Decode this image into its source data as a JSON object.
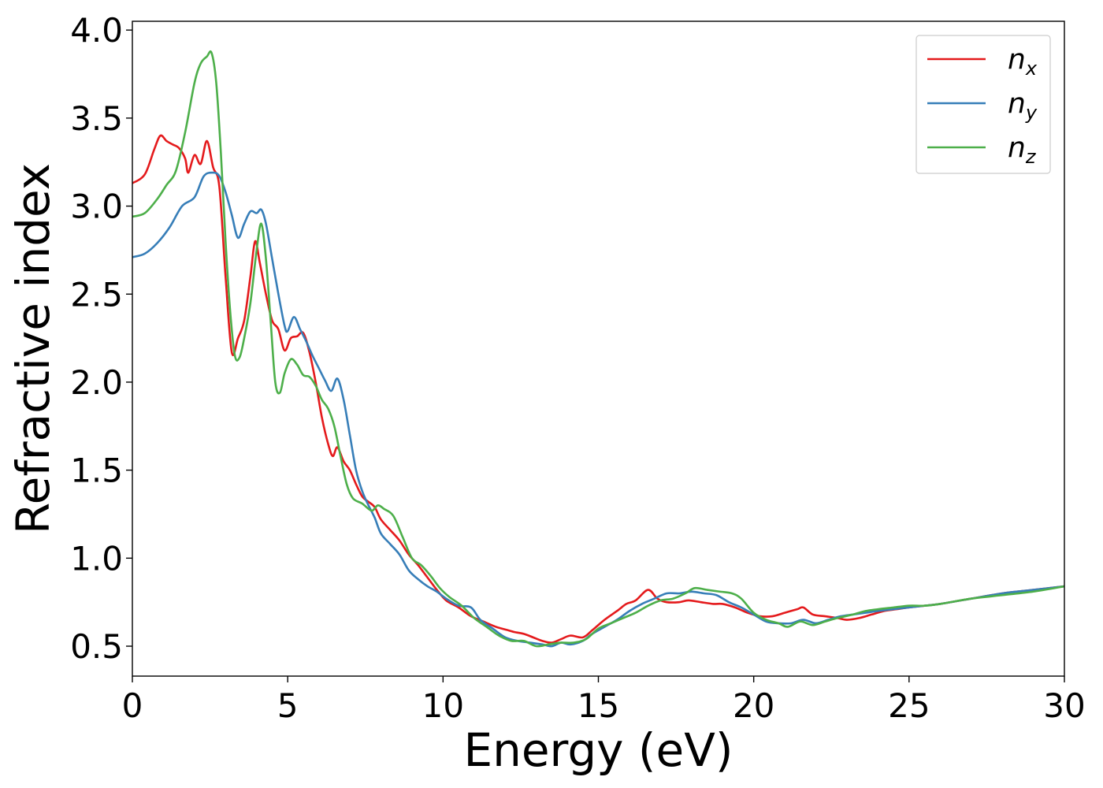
{
  "chart_data": {
    "type": "line",
    "title": "",
    "xlabel": "Energy (eV)",
    "ylabel": "Refractive index",
    "xlim": [
      0,
      30
    ],
    "ylim": [
      0.33,
      4.05
    ],
    "xticks": [
      0,
      5,
      10,
      15,
      20,
      25,
      30
    ],
    "xtick_labels": [
      "0",
      "5",
      "10",
      "15",
      "20",
      "25",
      "30"
    ],
    "yticks": [
      0.5,
      1.0,
      1.5,
      2.0,
      2.5,
      3.0,
      3.5,
      4.0
    ],
    "ytick_labels": [
      "0.5",
      "1.0",
      "1.5",
      "2.0",
      "2.5",
      "3.0",
      "3.5",
      "4.0"
    ],
    "grid": false,
    "legend_position": "top-right",
    "series": [
      {
        "name": "n_x",
        "label_base": "n",
        "label_sub": "x",
        "color": "#e41a1c",
        "points": [
          [
            0,
            3.13
          ],
          [
            0.4,
            3.18
          ],
          [
            0.7,
            3.32
          ],
          [
            0.9,
            3.4
          ],
          [
            1.1,
            3.37
          ],
          [
            1.3,
            3.35
          ],
          [
            1.5,
            3.33
          ],
          [
            1.7,
            3.27
          ],
          [
            1.8,
            3.19
          ],
          [
            2.0,
            3.29
          ],
          [
            2.2,
            3.24
          ],
          [
            2.4,
            3.37
          ],
          [
            2.6,
            3.22
          ],
          [
            2.8,
            3.11
          ],
          [
            3.0,
            2.6
          ],
          [
            3.2,
            2.17
          ],
          [
            3.4,
            2.25
          ],
          [
            3.6,
            2.35
          ],
          [
            3.8,
            2.6
          ],
          [
            3.95,
            2.8
          ],
          [
            4.1,
            2.68
          ],
          [
            4.3,
            2.5
          ],
          [
            4.5,
            2.35
          ],
          [
            4.7,
            2.3
          ],
          [
            4.9,
            2.18
          ],
          [
            5.1,
            2.25
          ],
          [
            5.3,
            2.26
          ],
          [
            5.5,
            2.28
          ],
          [
            5.7,
            2.17
          ],
          [
            5.9,
            2.0
          ],
          [
            6.1,
            1.8
          ],
          [
            6.3,
            1.65
          ],
          [
            6.45,
            1.58
          ],
          [
            6.6,
            1.63
          ],
          [
            6.8,
            1.55
          ],
          [
            7.0,
            1.5
          ],
          [
            7.2,
            1.42
          ],
          [
            7.4,
            1.35
          ],
          [
            7.6,
            1.32
          ],
          [
            7.8,
            1.29
          ],
          [
            8.0,
            1.22
          ],
          [
            8.3,
            1.16
          ],
          [
            8.6,
            1.1
          ],
          [
            8.9,
            1.02
          ],
          [
            9.2,
            0.96
          ],
          [
            9.5,
            0.89
          ],
          [
            9.8,
            0.82
          ],
          [
            10.1,
            0.76
          ],
          [
            10.5,
            0.72
          ],
          [
            10.9,
            0.67
          ],
          [
            11.3,
            0.64
          ],
          [
            11.7,
            0.61
          ],
          [
            12.1,
            0.59
          ],
          [
            12.3,
            0.58
          ],
          [
            12.6,
            0.57
          ],
          [
            12.9,
            0.55
          ],
          [
            13.2,
            0.53
          ],
          [
            13.5,
            0.52
          ],
          [
            13.8,
            0.54
          ],
          [
            14.1,
            0.56
          ],
          [
            14.5,
            0.55
          ],
          [
            14.8,
            0.59
          ],
          [
            15.2,
            0.65
          ],
          [
            15.6,
            0.7
          ],
          [
            15.9,
            0.74
          ],
          [
            16.2,
            0.76
          ],
          [
            16.6,
            0.82
          ],
          [
            16.9,
            0.77
          ],
          [
            17.2,
            0.75
          ],
          [
            17.6,
            0.75
          ],
          [
            17.9,
            0.76
          ],
          [
            18.3,
            0.75
          ],
          [
            18.7,
            0.74
          ],
          [
            19.0,
            0.74
          ],
          [
            19.4,
            0.72
          ],
          [
            19.8,
            0.69
          ],
          [
            20.2,
            0.67
          ],
          [
            20.6,
            0.67
          ],
          [
            21.0,
            0.69
          ],
          [
            21.4,
            0.71
          ],
          [
            21.6,
            0.72
          ],
          [
            21.9,
            0.68
          ],
          [
            22.3,
            0.67
          ],
          [
            22.7,
            0.66
          ],
          [
            23.0,
            0.65
          ],
          [
            23.4,
            0.66
          ],
          [
            23.8,
            0.68
          ],
          [
            24.2,
            0.7
          ],
          [
            24.6,
            0.71
          ],
          [
            25.0,
            0.72
          ],
          [
            25.5,
            0.73
          ],
          [
            26,
            0.74
          ],
          [
            27,
            0.77
          ],
          [
            28,
            0.8
          ],
          [
            29,
            0.82
          ],
          [
            30,
            0.84
          ]
        ]
      },
      {
        "name": "n_y",
        "label_base": "n",
        "label_sub": "y",
        "color": "#377eb8",
        "points": [
          [
            0,
            2.71
          ],
          [
            0.4,
            2.73
          ],
          [
            0.8,
            2.79
          ],
          [
            1.2,
            2.88
          ],
          [
            1.6,
            3.0
          ],
          [
            2.0,
            3.05
          ],
          [
            2.3,
            3.17
          ],
          [
            2.6,
            3.19
          ],
          [
            2.8,
            3.17
          ],
          [
            3.0,
            3.08
          ],
          [
            3.2,
            2.95
          ],
          [
            3.4,
            2.82
          ],
          [
            3.6,
            2.9
          ],
          [
            3.8,
            2.97
          ],
          [
            4.0,
            2.96
          ],
          [
            4.15,
            2.98
          ],
          [
            4.3,
            2.9
          ],
          [
            4.5,
            2.7
          ],
          [
            4.7,
            2.5
          ],
          [
            4.9,
            2.32
          ],
          [
            5.0,
            2.29
          ],
          [
            5.2,
            2.37
          ],
          [
            5.4,
            2.3
          ],
          [
            5.6,
            2.23
          ],
          [
            5.8,
            2.15
          ],
          [
            6.0,
            2.08
          ],
          [
            6.2,
            2.01
          ],
          [
            6.4,
            1.95
          ],
          [
            6.6,
            2.02
          ],
          [
            6.8,
            1.9
          ],
          [
            7.0,
            1.7
          ],
          [
            7.2,
            1.5
          ],
          [
            7.4,
            1.38
          ],
          [
            7.6,
            1.3
          ],
          [
            7.8,
            1.23
          ],
          [
            8.0,
            1.14
          ],
          [
            8.3,
            1.08
          ],
          [
            8.6,
            1.02
          ],
          [
            8.9,
            0.93
          ],
          [
            9.2,
            0.88
          ],
          [
            9.5,
            0.84
          ],
          [
            9.8,
            0.81
          ],
          [
            10.1,
            0.77
          ],
          [
            10.5,
            0.73
          ],
          [
            10.9,
            0.72
          ],
          [
            11.2,
            0.65
          ],
          [
            11.6,
            0.6
          ],
          [
            12.0,
            0.55
          ],
          [
            12.4,
            0.53
          ],
          [
            12.8,
            0.52
          ],
          [
            13.2,
            0.51
          ],
          [
            13.5,
            0.5
          ],
          [
            13.8,
            0.52
          ],
          [
            14.1,
            0.51
          ],
          [
            14.5,
            0.53
          ],
          [
            14.8,
            0.57
          ],
          [
            15.2,
            0.61
          ],
          [
            15.6,
            0.65
          ],
          [
            16.0,
            0.7
          ],
          [
            16.4,
            0.74
          ],
          [
            16.8,
            0.77
          ],
          [
            17.2,
            0.8
          ],
          [
            17.6,
            0.8
          ],
          [
            18.0,
            0.81
          ],
          [
            18.4,
            0.8
          ],
          [
            18.8,
            0.79
          ],
          [
            19.2,
            0.75
          ],
          [
            19.6,
            0.72
          ],
          [
            20.0,
            0.68
          ],
          [
            20.4,
            0.64
          ],
          [
            20.8,
            0.63
          ],
          [
            21.2,
            0.63
          ],
          [
            21.6,
            0.65
          ],
          [
            22.0,
            0.63
          ],
          [
            22.4,
            0.65
          ],
          [
            22.8,
            0.67
          ],
          [
            23.2,
            0.68
          ],
          [
            23.6,
            0.69
          ],
          [
            24.0,
            0.7
          ],
          [
            24.5,
            0.71
          ],
          [
            25.0,
            0.72
          ],
          [
            25.5,
            0.73
          ],
          [
            26,
            0.74
          ],
          [
            27,
            0.77
          ],
          [
            28,
            0.8
          ],
          [
            29,
            0.82
          ],
          [
            30,
            0.84
          ]
        ]
      },
      {
        "name": "n_z",
        "label_base": "n",
        "label_sub": "z",
        "color": "#4daf4a",
        "points": [
          [
            0,
            2.94
          ],
          [
            0.4,
            2.96
          ],
          [
            0.8,
            3.04
          ],
          [
            1.1,
            3.12
          ],
          [
            1.4,
            3.2
          ],
          [
            1.7,
            3.42
          ],
          [
            2.0,
            3.7
          ],
          [
            2.2,
            3.81
          ],
          [
            2.4,
            3.85
          ],
          [
            2.55,
            3.87
          ],
          [
            2.7,
            3.7
          ],
          [
            2.85,
            3.3
          ],
          [
            3.0,
            2.8
          ],
          [
            3.15,
            2.4
          ],
          [
            3.3,
            2.15
          ],
          [
            3.45,
            2.14
          ],
          [
            3.6,
            2.25
          ],
          [
            3.8,
            2.45
          ],
          [
            4.0,
            2.75
          ],
          [
            4.15,
            2.9
          ],
          [
            4.3,
            2.7
          ],
          [
            4.45,
            2.35
          ],
          [
            4.6,
            2.0
          ],
          [
            4.75,
            1.94
          ],
          [
            4.9,
            2.05
          ],
          [
            5.1,
            2.13
          ],
          [
            5.3,
            2.1
          ],
          [
            5.5,
            2.04
          ],
          [
            5.7,
            2.03
          ],
          [
            5.9,
            1.98
          ],
          [
            6.1,
            1.9
          ],
          [
            6.3,
            1.85
          ],
          [
            6.5,
            1.75
          ],
          [
            6.7,
            1.58
          ],
          [
            6.9,
            1.42
          ],
          [
            7.1,
            1.34
          ],
          [
            7.4,
            1.31
          ],
          [
            7.7,
            1.27
          ],
          [
            7.9,
            1.3
          ],
          [
            8.1,
            1.28
          ],
          [
            8.4,
            1.24
          ],
          [
            8.7,
            1.12
          ],
          [
            9.0,
            1.0
          ],
          [
            9.3,
            0.96
          ],
          [
            9.6,
            0.9
          ],
          [
            9.9,
            0.83
          ],
          [
            10.2,
            0.78
          ],
          [
            10.6,
            0.73
          ],
          [
            11.0,
            0.66
          ],
          [
            11.4,
            0.61
          ],
          [
            11.8,
            0.56
          ],
          [
            12.2,
            0.53
          ],
          [
            12.6,
            0.53
          ],
          [
            13.0,
            0.5
          ],
          [
            13.4,
            0.51
          ],
          [
            13.8,
            0.52
          ],
          [
            14.2,
            0.52
          ],
          [
            14.6,
            0.54
          ],
          [
            15.0,
            0.6
          ],
          [
            15.4,
            0.63
          ],
          [
            15.8,
            0.66
          ],
          [
            16.2,
            0.69
          ],
          [
            16.6,
            0.73
          ],
          [
            17.0,
            0.76
          ],
          [
            17.4,
            0.77
          ],
          [
            17.8,
            0.8
          ],
          [
            18.1,
            0.83
          ],
          [
            18.5,
            0.82
          ],
          [
            18.9,
            0.81
          ],
          [
            19.3,
            0.8
          ],
          [
            19.6,
            0.77
          ],
          [
            20.0,
            0.69
          ],
          [
            20.4,
            0.65
          ],
          [
            20.8,
            0.63
          ],
          [
            21.1,
            0.61
          ],
          [
            21.5,
            0.64
          ],
          [
            21.9,
            0.62
          ],
          [
            22.3,
            0.64
          ],
          [
            22.7,
            0.66
          ],
          [
            23.2,
            0.68
          ],
          [
            23.6,
            0.7
          ],
          [
            24.0,
            0.71
          ],
          [
            24.5,
            0.72
          ],
          [
            25.0,
            0.73
          ],
          [
            25.5,
            0.73
          ],
          [
            26,
            0.74
          ],
          [
            27,
            0.77
          ],
          [
            28,
            0.79
          ],
          [
            29,
            0.81
          ],
          [
            30,
            0.84
          ]
        ]
      }
    ]
  }
}
